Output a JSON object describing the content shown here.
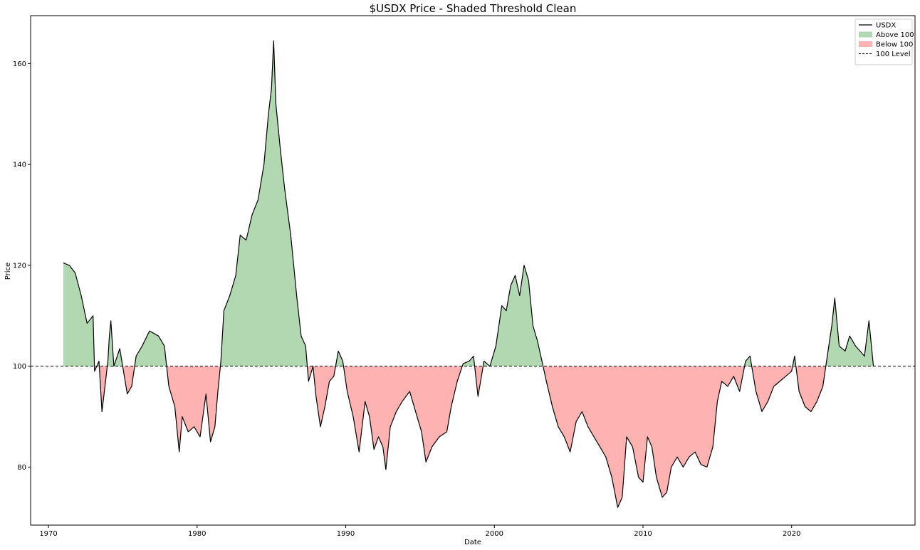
{
  "chart_data": {
    "type": "area",
    "title": "$USDX Price - Shaded Threshold Clean",
    "xlabel": "Date",
    "ylabel": "Price",
    "xlim": [
      1968.8,
      2028.3
    ],
    "ylim": [
      68.5,
      169.5
    ],
    "x_ticks": [
      1970,
      1980,
      1990,
      2000,
      2010,
      2020
    ],
    "x_tick_labels": [
      "1970",
      "1980",
      "1990",
      "2000",
      "2010",
      "2020"
    ],
    "y_ticks": [
      80,
      100,
      120,
      140,
      160
    ],
    "y_tick_labels": [
      "80",
      "100",
      "120",
      "140",
      "160"
    ],
    "threshold": 100,
    "grid": false,
    "legend_position": "top-right",
    "colors": {
      "line": "#000000",
      "above": "#b2d8b2",
      "below": "#ffb2b2",
      "threshold": "#000000"
    },
    "legend": [
      {
        "label": "USDX",
        "kind": "line"
      },
      {
        "label": "Above 100",
        "kind": "fill-above"
      },
      {
        "label": "Below 100",
        "kind": "fill-below"
      },
      {
        "label": "100 Level",
        "kind": "dashed"
      }
    ],
    "series": [
      {
        "name": "USDX",
        "points": [
          [
            1971.0,
            120.5
          ],
          [
            1971.4,
            120.0
          ],
          [
            1971.8,
            118.5
          ],
          [
            1972.2,
            114.0
          ],
          [
            1972.6,
            108.5
          ],
          [
            1973.0,
            110.0
          ],
          [
            1973.1,
            99.0
          ],
          [
            1973.4,
            101.0
          ],
          [
            1973.6,
            91.0
          ],
          [
            1973.8,
            96.0
          ],
          [
            1974.0,
            101.0
          ],
          [
            1974.1,
            106.0
          ],
          [
            1974.2,
            109.0
          ],
          [
            1974.4,
            100.0
          ],
          [
            1974.8,
            103.5
          ],
          [
            1975.3,
            94.5
          ],
          [
            1975.6,
            96.0
          ],
          [
            1975.9,
            102.0
          ],
          [
            1976.3,
            104.0
          ],
          [
            1976.8,
            107.0
          ],
          [
            1977.4,
            106.0
          ],
          [
            1977.8,
            104.0
          ],
          [
            1978.1,
            96.0
          ],
          [
            1978.5,
            92.0
          ],
          [
            1978.8,
            83.0
          ],
          [
            1979.0,
            90.0
          ],
          [
            1979.4,
            87.0
          ],
          [
            1979.8,
            88.0
          ],
          [
            1980.2,
            86.0
          ],
          [
            1980.6,
            94.5
          ],
          [
            1980.9,
            85.0
          ],
          [
            1981.2,
            88.0
          ],
          [
            1981.4,
            95.0
          ],
          [
            1981.6,
            101.0
          ],
          [
            1981.8,
            111.0
          ],
          [
            1982.2,
            114.0
          ],
          [
            1982.6,
            118.0
          ],
          [
            1982.9,
            126.0
          ],
          [
            1983.3,
            125.0
          ],
          [
            1983.7,
            130.0
          ],
          [
            1984.1,
            133.0
          ],
          [
            1984.5,
            140.0
          ],
          [
            1984.8,
            150.0
          ],
          [
            1985.0,
            155.0
          ],
          [
            1985.15,
            164.5
          ],
          [
            1985.3,
            152.0
          ],
          [
            1985.6,
            143.0
          ],
          [
            1985.9,
            135.0
          ],
          [
            1986.3,
            126.0
          ],
          [
            1986.7,
            114.0
          ],
          [
            1987.0,
            106.0
          ],
          [
            1987.3,
            104.0
          ],
          [
            1987.5,
            97.0
          ],
          [
            1987.8,
            100.0
          ],
          [
            1988.0,
            94.0
          ],
          [
            1988.3,
            88.0
          ],
          [
            1988.6,
            92.0
          ],
          [
            1988.9,
            97.0
          ],
          [
            1989.2,
            98.0
          ],
          [
            1989.5,
            103.0
          ],
          [
            1989.8,
            101.0
          ],
          [
            1990.1,
            95.0
          ],
          [
            1990.5,
            90.0
          ],
          [
            1990.9,
            83.0
          ],
          [
            1991.3,
            93.0
          ],
          [
            1991.6,
            90.0
          ],
          [
            1991.9,
            83.5
          ],
          [
            1992.2,
            86.0
          ],
          [
            1992.5,
            84.0
          ],
          [
            1992.7,
            79.5
          ],
          [
            1993.0,
            88.0
          ],
          [
            1993.4,
            91.0
          ],
          [
            1993.8,
            93.0
          ],
          [
            1994.3,
            95.0
          ],
          [
            1994.7,
            91.0
          ],
          [
            1995.1,
            87.0
          ],
          [
            1995.4,
            81.0
          ],
          [
            1995.8,
            84.0
          ],
          [
            1996.3,
            86.0
          ],
          [
            1996.8,
            87.0
          ],
          [
            1997.1,
            92.0
          ],
          [
            1997.5,
            97.0
          ],
          [
            1997.9,
            100.5
          ],
          [
            1998.3,
            101.0
          ],
          [
            1998.6,
            102.0
          ],
          [
            1998.9,
            94.0
          ],
          [
            1999.3,
            101.0
          ],
          [
            1999.7,
            100.0
          ],
          [
            2000.1,
            104.0
          ],
          [
            2000.5,
            112.0
          ],
          [
            2000.8,
            111.0
          ],
          [
            2001.1,
            116.0
          ],
          [
            2001.4,
            118.0
          ],
          [
            2001.7,
            114.0
          ],
          [
            2002.0,
            120.0
          ],
          [
            2002.3,
            117.0
          ],
          [
            2002.6,
            108.0
          ],
          [
            2002.9,
            105.0
          ],
          [
            2003.2,
            101.0
          ],
          [
            2003.5,
            97.0
          ],
          [
            2003.9,
            92.0
          ],
          [
            2004.3,
            88.0
          ],
          [
            2004.7,
            86.0
          ],
          [
            2005.1,
            83.0
          ],
          [
            2005.5,
            89.0
          ],
          [
            2005.9,
            91.0
          ],
          [
            2006.3,
            88.0
          ],
          [
            2006.7,
            86.0
          ],
          [
            2007.1,
            84.0
          ],
          [
            2007.5,
            82.0
          ],
          [
            2007.9,
            78.0
          ],
          [
            2008.3,
            72.0
          ],
          [
            2008.6,
            74.0
          ],
          [
            2008.9,
            86.0
          ],
          [
            2009.3,
            84.0
          ],
          [
            2009.7,
            78.0
          ],
          [
            2010.0,
            77.0
          ],
          [
            2010.3,
            86.0
          ],
          [
            2010.6,
            84.0
          ],
          [
            2010.9,
            78.0
          ],
          [
            2011.3,
            74.0
          ],
          [
            2011.6,
            75.0
          ],
          [
            2011.9,
            80.0
          ],
          [
            2012.3,
            82.0
          ],
          [
            2012.7,
            80.0
          ],
          [
            2013.1,
            82.0
          ],
          [
            2013.5,
            83.0
          ],
          [
            2013.9,
            80.5
          ],
          [
            2014.3,
            80.0
          ],
          [
            2014.7,
            84.0
          ],
          [
            2015.0,
            93.0
          ],
          [
            2015.3,
            97.0
          ],
          [
            2015.7,
            96.0
          ],
          [
            2016.1,
            98.0
          ],
          [
            2016.5,
            95.0
          ],
          [
            2016.9,
            101.0
          ],
          [
            2017.2,
            102.0
          ],
          [
            2017.6,
            95.0
          ],
          [
            2018.0,
            91.0
          ],
          [
            2018.4,
            93.0
          ],
          [
            2018.8,
            96.0
          ],
          [
            2019.2,
            97.0
          ],
          [
            2019.6,
            98.0
          ],
          [
            2020.0,
            99.0
          ],
          [
            2020.2,
            102.0
          ],
          [
            2020.5,
            95.0
          ],
          [
            2020.9,
            92.0
          ],
          [
            2021.3,
            91.0
          ],
          [
            2021.7,
            93.0
          ],
          [
            2022.1,
            96.0
          ],
          [
            2022.4,
            102.0
          ],
          [
            2022.7,
            108.0
          ],
          [
            2022.9,
            113.5
          ],
          [
            2023.2,
            104.0
          ],
          [
            2023.6,
            103.0
          ],
          [
            2023.9,
            106.0
          ],
          [
            2024.3,
            104.0
          ],
          [
            2024.6,
            103.0
          ],
          [
            2024.9,
            102.0
          ],
          [
            2025.2,
            109.0
          ],
          [
            2025.5,
            100.0
          ]
        ]
      }
    ]
  }
}
